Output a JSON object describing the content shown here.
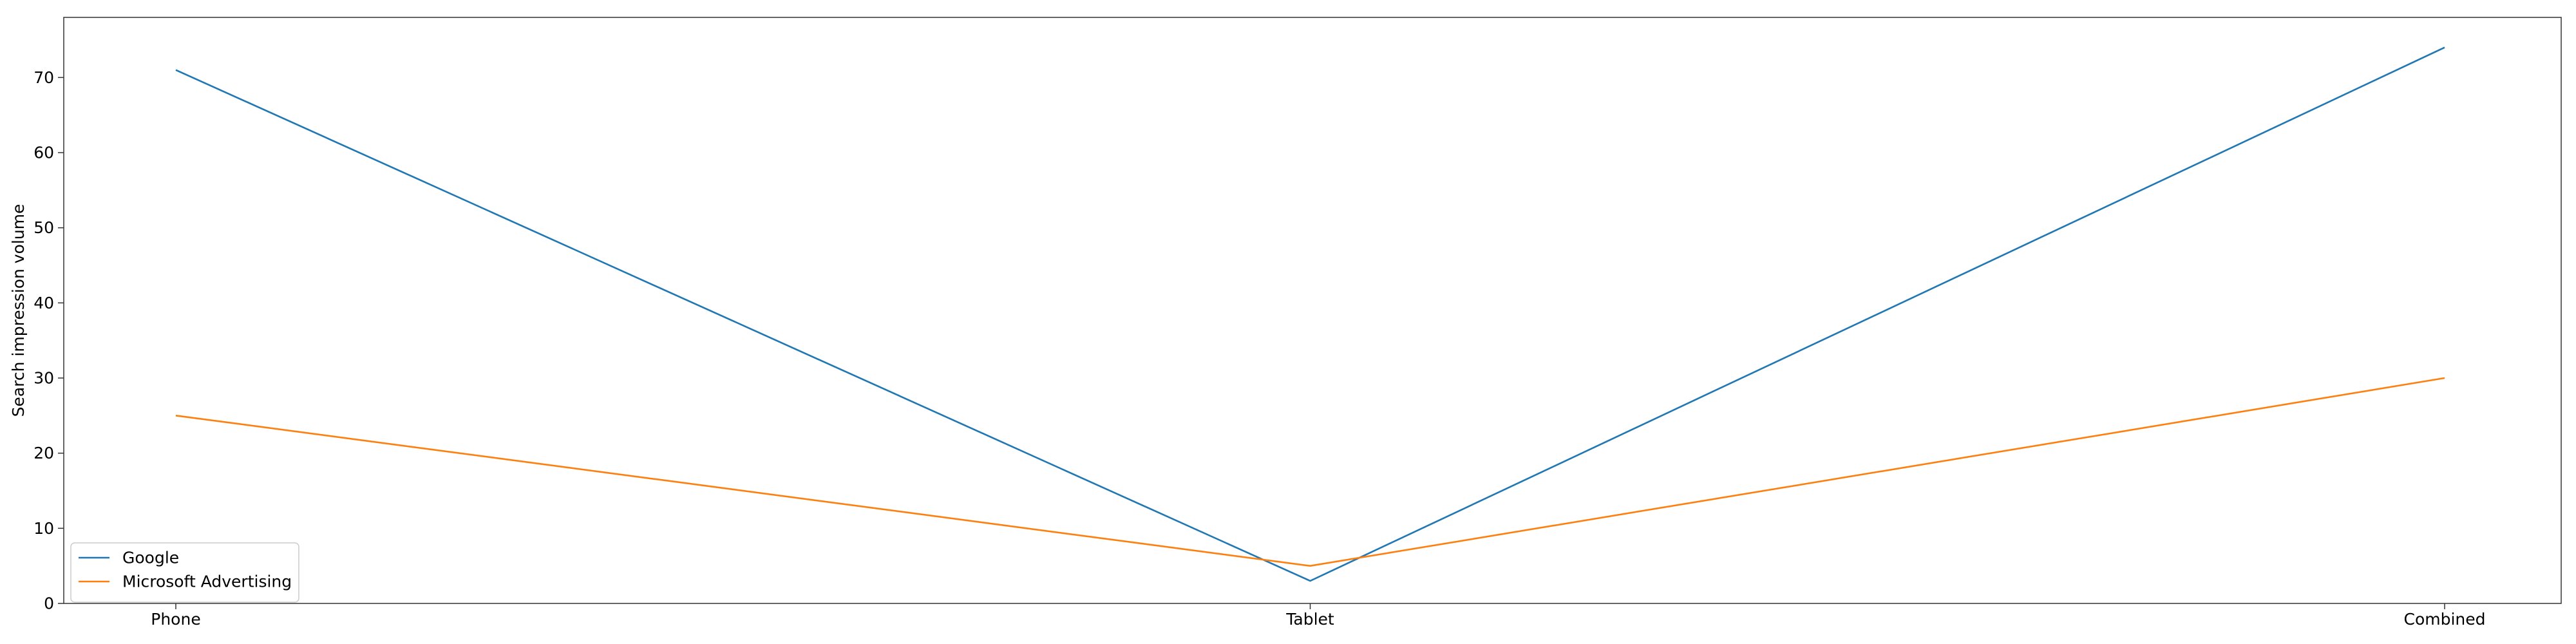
{
  "chart_data": {
    "type": "line",
    "title": "",
    "xlabel": "",
    "ylabel": "Search impression volume",
    "categories": [
      "Phone",
      "Tablet",
      "Combined"
    ],
    "series": [
      {
        "name": "Google",
        "values": [
          71,
          3,
          74
        ],
        "color": "#1f77b4"
      },
      {
        "name": "Microsoft Advertising",
        "values": [
          25,
          5,
          30
        ],
        "color": "#ff7f0e"
      }
    ],
    "ylim": [
      0,
      78
    ],
    "yticks": [
      0,
      10,
      20,
      30,
      40,
      50,
      60,
      70
    ],
    "grid": false,
    "legend_position": "lower-left"
  }
}
